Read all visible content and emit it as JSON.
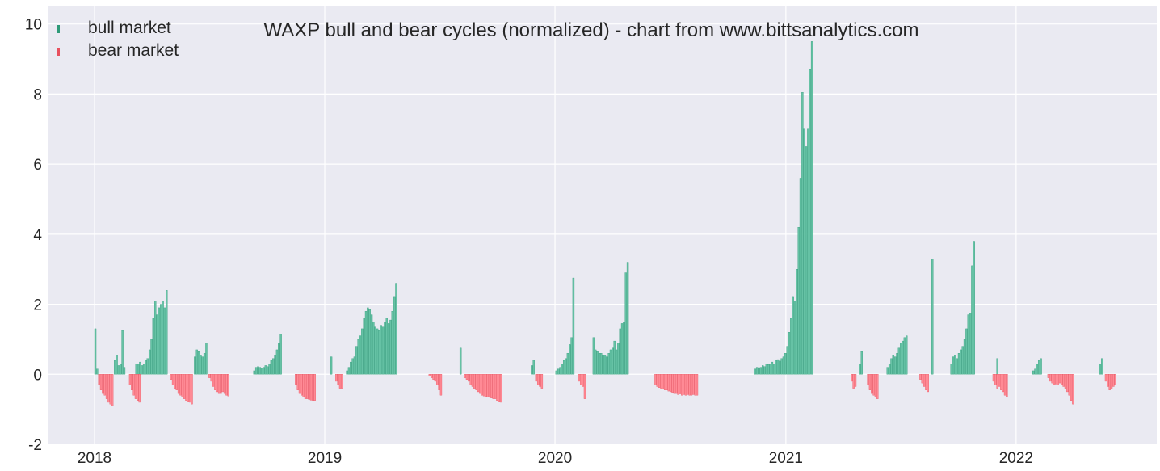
{
  "chart_data": {
    "type": "bar",
    "title": "WAXP bull and bear cycles (normalized)  - chart from www.bittsanalytics.com",
    "xlabel": "",
    "ylabel": "",
    "x_range": [
      "2017-10-20",
      "2022-08-12"
    ],
    "ylim": [
      -2,
      10.5
    ],
    "y_ticks": [
      -2,
      0,
      2,
      4,
      6,
      8,
      10
    ],
    "x_ticks": [
      "2018",
      "2019",
      "2020",
      "2021",
      "2022"
    ],
    "grid": true,
    "legend_position": "top-left",
    "colors": {
      "bull": "#66c2a5",
      "bull_edge": "#2e9a78",
      "bear": "#ff8a95",
      "bear_edge": "#e8505e",
      "background": "#eaeaf2",
      "grid": "#ffffff"
    },
    "series": [
      {
        "name": "bull market",
        "segments": [
          {
            "start": "2018-01-01",
            "values": [
              1.3,
              0.15
            ]
          },
          {
            "start": "2018-02-01",
            "values": [
              0.4,
              0.55,
              0.25,
              0.3,
              1.25,
              0.2
            ]
          },
          {
            "start": "2018-03-07",
            "values": [
              0.3,
              0.3,
              0.35,
              0.25,
              0.3,
              0.4,
              0.45,
              0.7,
              1.0,
              1.6,
              2.1,
              1.7,
              1.9,
              2.0,
              2.1,
              1.9,
              2.4
            ]
          },
          {
            "start": "2018-06-08",
            "values": [
              0.5,
              0.7,
              0.65,
              0.55,
              0.5,
              0.6,
              0.9
            ]
          },
          {
            "start": "2018-09-10",
            "values": [
              0.1,
              0.2,
              0.22,
              0.2,
              0.18,
              0.2,
              0.25,
              0.22,
              0.3,
              0.4,
              0.45,
              0.55,
              0.7,
              0.9,
              1.15
            ]
          },
          {
            "start": "2019-01-10",
            "values": [
              0.5
            ]
          },
          {
            "start": "2019-02-04",
            "values": [
              0.1,
              0.2,
              0.35,
              0.45,
              0.5,
              0.8,
              1.0,
              1.1,
              1.3,
              1.6,
              1.8,
              1.9,
              1.85,
              1.7,
              1.5,
              1.35,
              1.3,
              1.25,
              1.4,
              1.35,
              1.5,
              1.6,
              1.45,
              1.55,
              1.8,
              2.2,
              2.6
            ]
          },
          {
            "start": "2019-08-03",
            "values": [
              0.75
            ]
          },
          {
            "start": "2019-11-24",
            "values": [
              0.25,
              0.4
            ]
          },
          {
            "start": "2020-01-02",
            "values": [
              0.1,
              0.15,
              0.2,
              0.3,
              0.4,
              0.45,
              0.6,
              0.85,
              1.05,
              2.75
            ]
          },
          {
            "start": "2020-03-01",
            "values": [
              1.05,
              0.7,
              0.65,
              0.6,
              0.6,
              0.55,
              0.55,
              0.5,
              0.6,
              0.7,
              0.75,
              0.95,
              0.7,
              0.9,
              1.3,
              1.45,
              1.5,
              2.9,
              3.2
            ]
          },
          {
            "start": "2020-11-12",
            "values": [
              0.15,
              0.2,
              0.18,
              0.2,
              0.25,
              0.22,
              0.3,
              0.28,
              0.3,
              0.35,
              0.3,
              0.4,
              0.42,
              0.38,
              0.45,
              0.5,
              0.6,
              0.8,
              1.2,
              1.6,
              2.2,
              2.1,
              3.0,
              4.2,
              5.6,
              8.05,
              7.0,
              6.5,
              7.0,
              8.7,
              9.5
            ]
          },
          {
            "start": "2021-04-27",
            "values": [
              0.3,
              0.65
            ]
          },
          {
            "start": "2021-06-10",
            "values": [
              0.2,
              0.3,
              0.45,
              0.55,
              0.5,
              0.6,
              0.75,
              0.9,
              0.95,
              1.05,
              1.1
            ]
          },
          {
            "start": "2021-08-20",
            "values": [
              3.3
            ]
          },
          {
            "start": "2021-09-19",
            "values": [
              0.3,
              0.5,
              0.55,
              0.45,
              0.6,
              0.7,
              0.8,
              1.0,
              1.3,
              1.7,
              1.75,
              3.1,
              3.8
            ]
          },
          {
            "start": "2021-12-01",
            "values": [
              0.45
            ]
          },
          {
            "start": "2022-01-27",
            "values": [
              0.1,
              0.15,
              0.3,
              0.4,
              0.45
            ]
          },
          {
            "start": "2022-05-13",
            "values": [
              0.3,
              0.45
            ]
          }
        ]
      },
      {
        "name": "bear market",
        "segments": [
          {
            "start": "2018-01-07",
            "values": [
              -0.3,
              -0.45,
              -0.55,
              -0.6,
              -0.7,
              -0.8,
              -0.85,
              -0.9
            ]
          },
          {
            "start": "2018-02-25",
            "values": [
              -0.3,
              -0.45,
              -0.6,
              -0.7,
              -0.75,
              -0.8
            ]
          },
          {
            "start": "2018-05-01",
            "values": [
              -0.15,
              -0.3,
              -0.4,
              -0.45,
              -0.55,
              -0.6,
              -0.65,
              -0.7,
              -0.75,
              -0.78,
              -0.8,
              -0.85
            ]
          },
          {
            "start": "2018-07-01",
            "values": [
              -0.1,
              -0.2,
              -0.35,
              -0.45,
              -0.5,
              -0.55,
              -0.55,
              -0.5,
              -0.55,
              -0.6,
              -0.62
            ]
          },
          {
            "start": "2018-11-15",
            "values": [
              -0.3,
              -0.45,
              -0.55,
              -0.6,
              -0.65,
              -0.7,
              -0.7,
              -0.72,
              -0.74,
              -0.75,
              -0.75
            ]
          },
          {
            "start": "2019-01-18",
            "values": [
              -0.2,
              -0.3,
              -0.4,
              -0.4
            ]
          },
          {
            "start": "2019-06-15",
            "values": [
              -0.05,
              -0.1,
              -0.15,
              -0.2,
              -0.3,
              -0.45,
              -0.6
            ]
          },
          {
            "start": "2019-08-10",
            "values": [
              -0.1,
              -0.15,
              -0.2,
              -0.3,
              -0.35,
              -0.4,
              -0.45,
              -0.5,
              -0.55,
              -0.6,
              -0.62,
              -0.64,
              -0.65,
              -0.66,
              -0.68,
              -0.7,
              -0.7,
              -0.75,
              -0.78,
              -0.8
            ]
          },
          {
            "start": "2019-12-01",
            "values": [
              -0.2,
              -0.3,
              -0.35,
              -0.4
            ]
          },
          {
            "start": "2020-02-07",
            "values": [
              -0.2,
              -0.3,
              -0.35,
              -0.7
            ]
          },
          {
            "start": "2020-06-07",
            "values": [
              -0.3,
              -0.35,
              -0.38,
              -0.4,
              -0.42,
              -0.45,
              -0.45,
              -0.48,
              -0.5,
              -0.52,
              -0.55,
              -0.55,
              -0.58,
              -0.56,
              -0.6,
              -0.58,
              -0.6,
              -0.58,
              -0.6,
              -0.6,
              -0.58,
              -0.6,
              -0.6
            ]
          },
          {
            "start": "2021-04-14",
            "values": [
              -0.2,
              -0.4,
              -0.35
            ]
          },
          {
            "start": "2021-05-10",
            "values": [
              -0.3,
              -0.45,
              -0.55,
              -0.6,
              -0.65,
              -0.7
            ]
          },
          {
            "start": "2021-08-01",
            "values": [
              -0.15,
              -0.25,
              -0.35,
              -0.45,
              -0.5
            ]
          },
          {
            "start": "2021-11-25",
            "values": [
              -0.2,
              -0.3,
              -0.4,
              -0.35,
              -0.45,
              -0.5,
              -0.6,
              -0.65
            ]
          },
          {
            "start": "2022-02-20",
            "values": [
              -0.1,
              -0.2,
              -0.25,
              -0.3,
              -0.28,
              -0.3,
              -0.25,
              -0.3,
              -0.35,
              -0.4,
              -0.5,
              -0.6,
              -0.75,
              -0.85
            ]
          },
          {
            "start": "2022-05-22",
            "values": [
              -0.2,
              -0.35,
              -0.45,
              -0.4,
              -0.35,
              -0.3
            ]
          }
        ]
      }
    ]
  }
}
